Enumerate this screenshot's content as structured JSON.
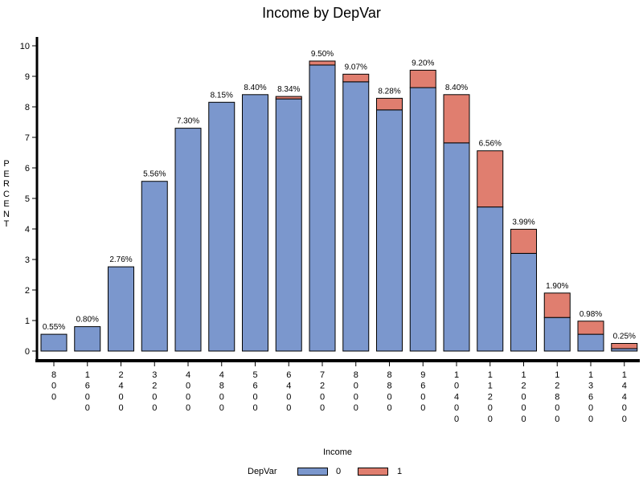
{
  "chart_data": {
    "type": "bar",
    "stacked": true,
    "title": "Income by DepVar",
    "xlabel": "Income",
    "ylabel": "PERCENT",
    "ylim": [
      0,
      10
    ],
    "yticks": [
      "0",
      "1",
      "2",
      "3",
      "4",
      "5",
      "6",
      "7",
      "8",
      "9",
      "10"
    ],
    "categories": [
      "800",
      "1600",
      "2400",
      "3200",
      "4000",
      "4800",
      "5600",
      "6400",
      "7200",
      "8000",
      "8800",
      "9600",
      "10400",
      "11200",
      "12000",
      "12800",
      "13600",
      "14400"
    ],
    "series": [
      {
        "name": "0",
        "color": "#7b97cd",
        "values": [
          0.55,
          0.8,
          2.76,
          5.56,
          7.3,
          8.15,
          8.4,
          8.26,
          9.37,
          8.82,
          7.9,
          8.63,
          6.82,
          4.72,
          3.2,
          1.1,
          0.55,
          0.08
        ]
      },
      {
        "name": "1",
        "color": "#e07e6f",
        "values": [
          0,
          0,
          0,
          0,
          0,
          0,
          0,
          0.08,
          0.13,
          0.25,
          0.38,
          0.57,
          1.58,
          1.84,
          0.79,
          0.8,
          0.43,
          0.17
        ]
      }
    ],
    "data_labels": [
      "0.55%",
      "0.80%",
      "2.76%",
      "5.56%",
      "7.30%",
      "8.15%",
      "8.40%",
      "8.34%",
      "9.50%",
      "9.07%",
      "8.28%",
      "9.20%",
      "8.40%",
      "6.56%",
      "3.99%",
      "1.90%",
      "0.98%",
      "0.25%"
    ],
    "legend": {
      "title": "DepVar",
      "position": "bottom"
    },
    "grid": false
  }
}
